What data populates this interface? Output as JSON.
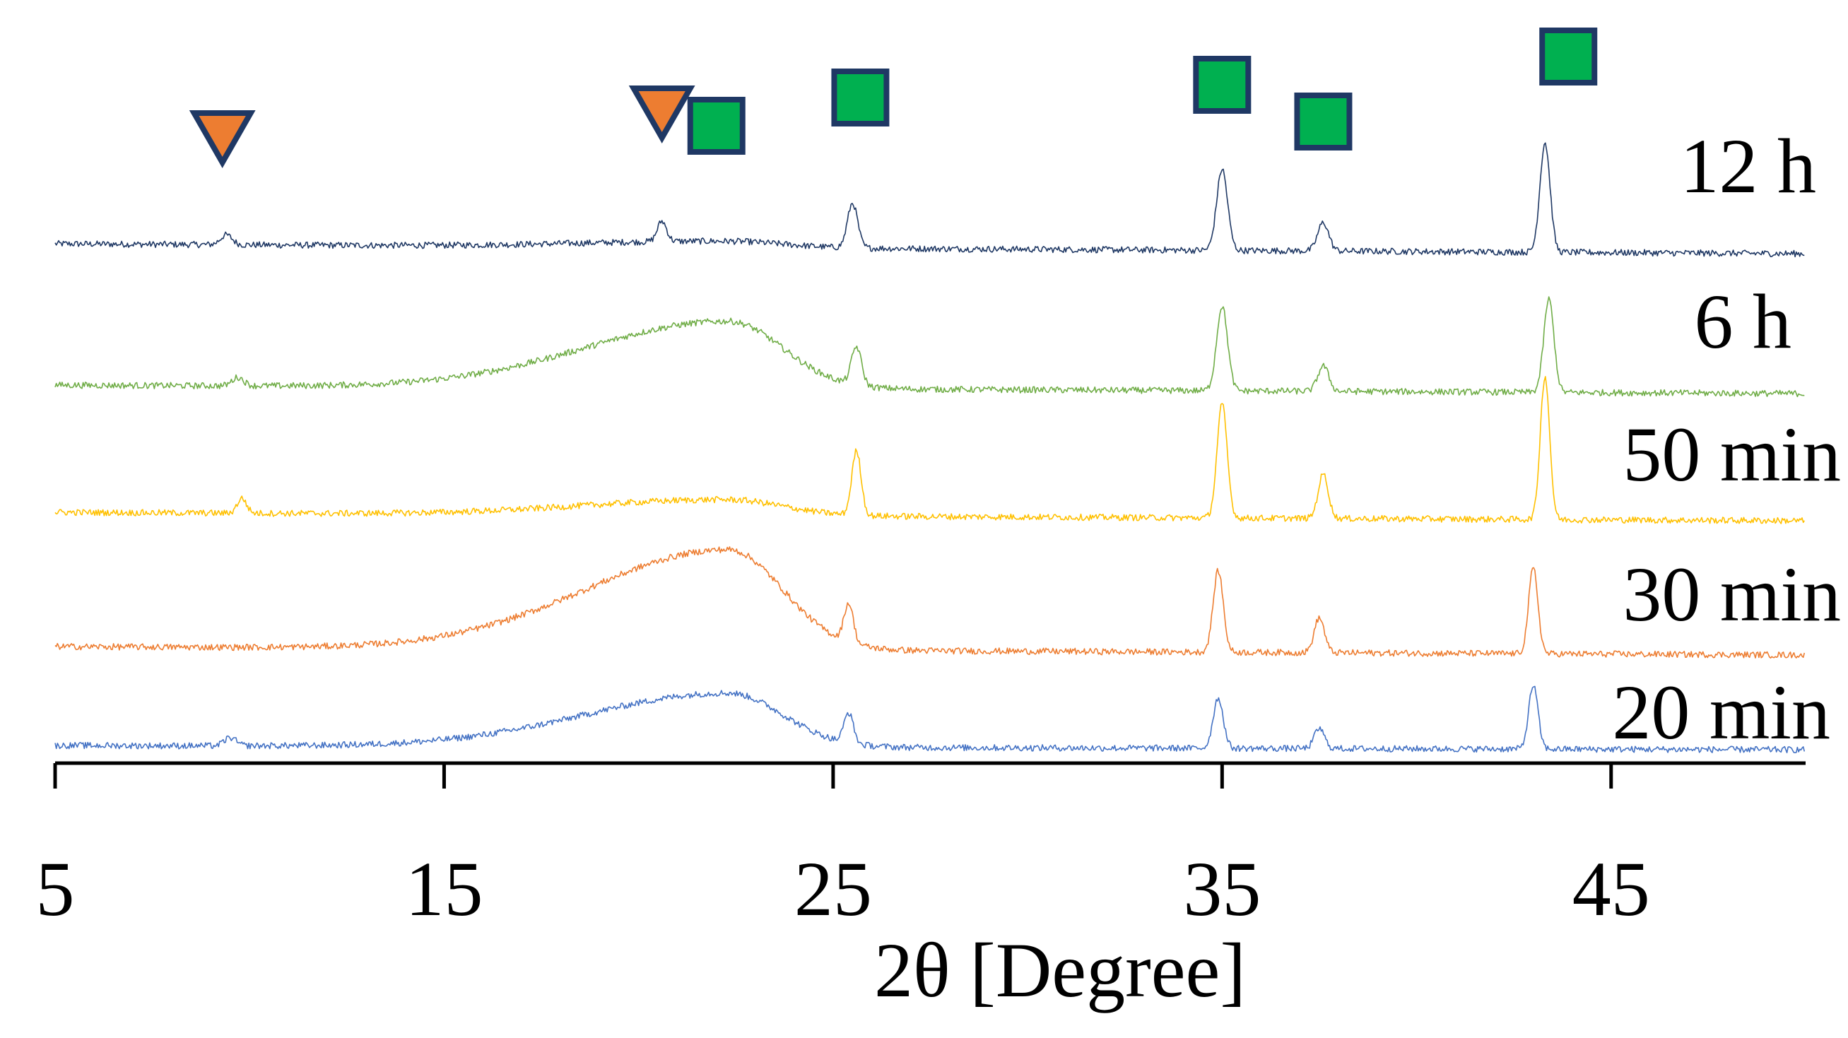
{
  "chart_data": {
    "type": "line",
    "title": "",
    "xlabel": "2θ [Degree]",
    "ylabel": "",
    "xlim": [
      5,
      50
    ],
    "xticks": [
      5,
      15,
      25,
      35,
      45
    ],
    "grid": false,
    "legend": "none",
    "series": [
      {
        "name": "12 h",
        "color": "#1f3864",
        "halo": 0.1,
        "peaks": [
          {
            "x": 9.4,
            "h": 0.12,
            "w": 0.15
          },
          {
            "x": 20.6,
            "h": 0.25,
            "w": 0.12
          },
          {
            "x": 25.5,
            "h": 0.55,
            "w": 0.13
          },
          {
            "x": 35.0,
            "h": 1.0,
            "w": 0.14
          },
          {
            "x": 37.6,
            "h": 0.35,
            "w": 0.14
          },
          {
            "x": 43.3,
            "h": 1.35,
            "w": 0.13
          }
        ]
      },
      {
        "name": "6 h",
        "color": "#70ad47",
        "halo": 1.0,
        "peaks": [
          {
            "x": 9.7,
            "h": 0.1,
            "w": 0.15
          },
          {
            "x": 25.6,
            "h": 0.45,
            "w": 0.13
          },
          {
            "x": 35.0,
            "h": 1.0,
            "w": 0.14
          },
          {
            "x": 37.6,
            "h": 0.3,
            "w": 0.14
          },
          {
            "x": 43.4,
            "h": 1.1,
            "w": 0.13
          }
        ]
      },
      {
        "name": "50 min",
        "color": "#ffc000",
        "halo": 0.25,
        "peaks": [
          {
            "x": 9.8,
            "h": 0.15,
            "w": 0.12
          },
          {
            "x": 25.6,
            "h": 0.65,
            "w": 0.12
          },
          {
            "x": 35.0,
            "h": 1.15,
            "w": 0.13
          },
          {
            "x": 37.6,
            "h": 0.45,
            "w": 0.13
          },
          {
            "x": 43.3,
            "h": 1.45,
            "w": 0.12
          }
        ]
      },
      {
        "name": "30 min",
        "color": "#ed7d31",
        "halo": 1.35,
        "peaks": [
          {
            "x": 25.4,
            "h": 0.5,
            "w": 0.12
          },
          {
            "x": 34.9,
            "h": 1.05,
            "w": 0.13
          },
          {
            "x": 37.5,
            "h": 0.45,
            "w": 0.13
          },
          {
            "x": 43.0,
            "h": 1.1,
            "w": 0.12
          }
        ]
      },
      {
        "name": "20 min",
        "color": "#4472c4",
        "halo": 0.9,
        "peaks": [
          {
            "x": 9.5,
            "h": 0.12,
            "w": 0.15
          },
          {
            "x": 25.4,
            "h": 0.45,
            "w": 0.12
          },
          {
            "x": 34.9,
            "h": 0.75,
            "w": 0.13
          },
          {
            "x": 37.5,
            "h": 0.3,
            "w": 0.13
          },
          {
            "x": 43.0,
            "h": 0.95,
            "w": 0.12
          }
        ]
      }
    ],
    "markers": [
      {
        "shape": "triangle-down",
        "x": 9.3,
        "color": "#ed7d31"
      },
      {
        "shape": "triangle-down",
        "x": 20.6,
        "color": "#ed7d31"
      },
      {
        "shape": "square",
        "x": 22.0,
        "color": "#00b050"
      },
      {
        "shape": "square",
        "x": 25.7,
        "color": "#00b050"
      },
      {
        "shape": "square",
        "x": 35.0,
        "color": "#00b050"
      },
      {
        "shape": "square",
        "x": 37.6,
        "color": "#00b050"
      },
      {
        "shape": "square",
        "x": 43.9,
        "color": "#00b050"
      }
    ],
    "marker_outline": "#1f3864"
  }
}
